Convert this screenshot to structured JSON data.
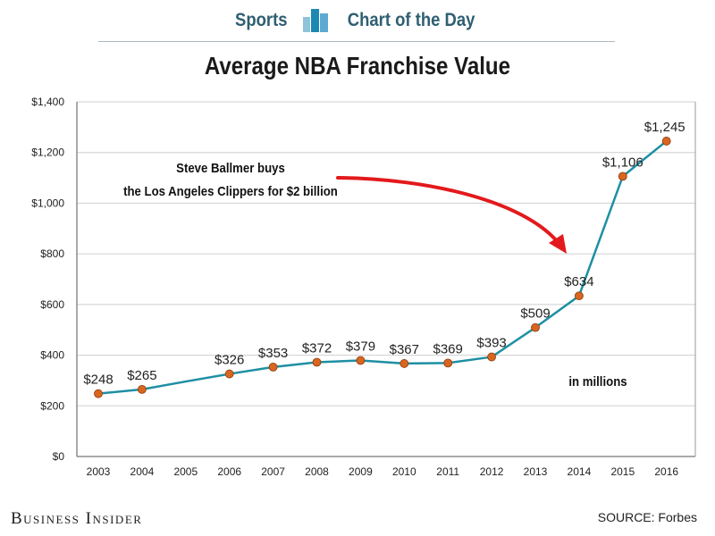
{
  "header": {
    "left_word": "Sports",
    "right_word": "Chart of the Day",
    "logo_icon": "bar-chart-icon"
  },
  "footer": {
    "brand": "Business Insider",
    "source": "SOURCE: Forbes"
  },
  "colors": {
    "line": "#1e8fa3",
    "marker": "#d9661f",
    "arrow": "#e3191c",
    "header_text": "#2f5f72"
  },
  "chart_data": {
    "type": "line",
    "title": "Average NBA Franchise Value",
    "xlabel": "",
    "ylabel": "",
    "ylim": [
      0,
      1400
    ],
    "ytick_values": [
      0,
      200,
      400,
      600,
      800,
      1000,
      1200,
      1400
    ],
    "ytick_labels": [
      "$0",
      "$200",
      "$400",
      "$600",
      "$800",
      "$1,000",
      "$1,200",
      "$1,400"
    ],
    "categories": [
      "2003",
      "2004",
      "2005",
      "2006",
      "2007",
      "2008",
      "2009",
      "2010",
      "2011",
      "2012",
      "2013",
      "2014",
      "2015",
      "2016"
    ],
    "series": [
      {
        "values": [
          248,
          265,
          296,
          326,
          353,
          372,
          379,
          367,
          369,
          393,
          509,
          634,
          1106,
          1245
        ],
        "data_labels": [
          "$248",
          "$265",
          "",
          "$326",
          "$353",
          "$372",
          "$379",
          "$367",
          "$369",
          "$393",
          "$509",
          "$634",
          "$1,106",
          "$1,245"
        ]
      }
    ],
    "grid": true,
    "annotations": [
      {
        "text_line1": "Steve Ballmer buys",
        "text_line2": "the Los Angeles Clippers for $2 billion"
      },
      {
        "text": "in millions"
      }
    ]
  }
}
